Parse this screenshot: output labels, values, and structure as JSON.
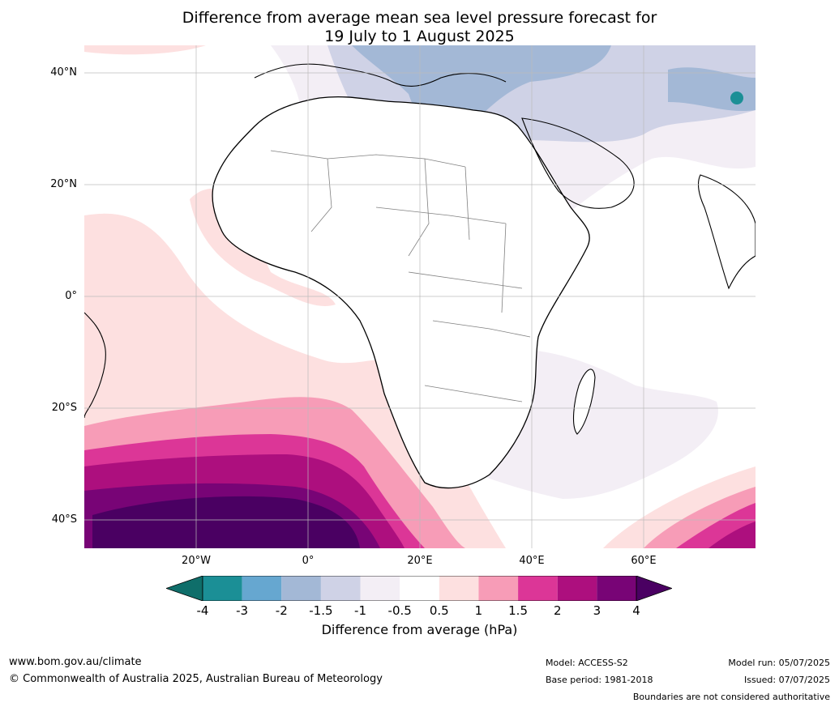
{
  "title": {
    "line1": "Difference from average mean sea level pressure forecast for",
    "line2": "19 July to 1 August 2025"
  },
  "axes": {
    "latitude_labels": [
      "40°N",
      "20°N",
      "0°",
      "20°S",
      "40°S"
    ],
    "longitude_labels": [
      "20°W",
      "0°",
      "20°E",
      "40°E",
      "60°E"
    ]
  },
  "colorbar": {
    "title": "Difference from average (hPa)",
    "ticks": [
      "-4",
      "-3",
      "-2",
      "-1.5",
      "-1",
      "-0.5",
      "0.5",
      "1",
      "1.5",
      "2",
      "3",
      "4"
    ],
    "colors": [
      "#1b8f96",
      "#66a7d0",
      "#a3b8d6",
      "#cfd2e6",
      "#f3eef5",
      "#ffffff",
      "#fde0e0",
      "#f79cb7",
      "#dc3697",
      "#ad0f7e",
      "#780476"
    ],
    "low_extend_color": "#0f6e6a",
    "high_extend_color": "#4a0062"
  },
  "footer": {
    "website": "www.bom.gov.au/climate",
    "copyright": "© Commonwealth of Australia 2025, Australian Bureau of Meteorology",
    "model": "Model: ACCESS-S2",
    "base_period": "Base period: 1981-2018",
    "model_run": "Model run: 05/07/2025",
    "issued": "Issued: 07/07/2025",
    "disclaimer": "Boundaries are not considered authoritative"
  }
}
